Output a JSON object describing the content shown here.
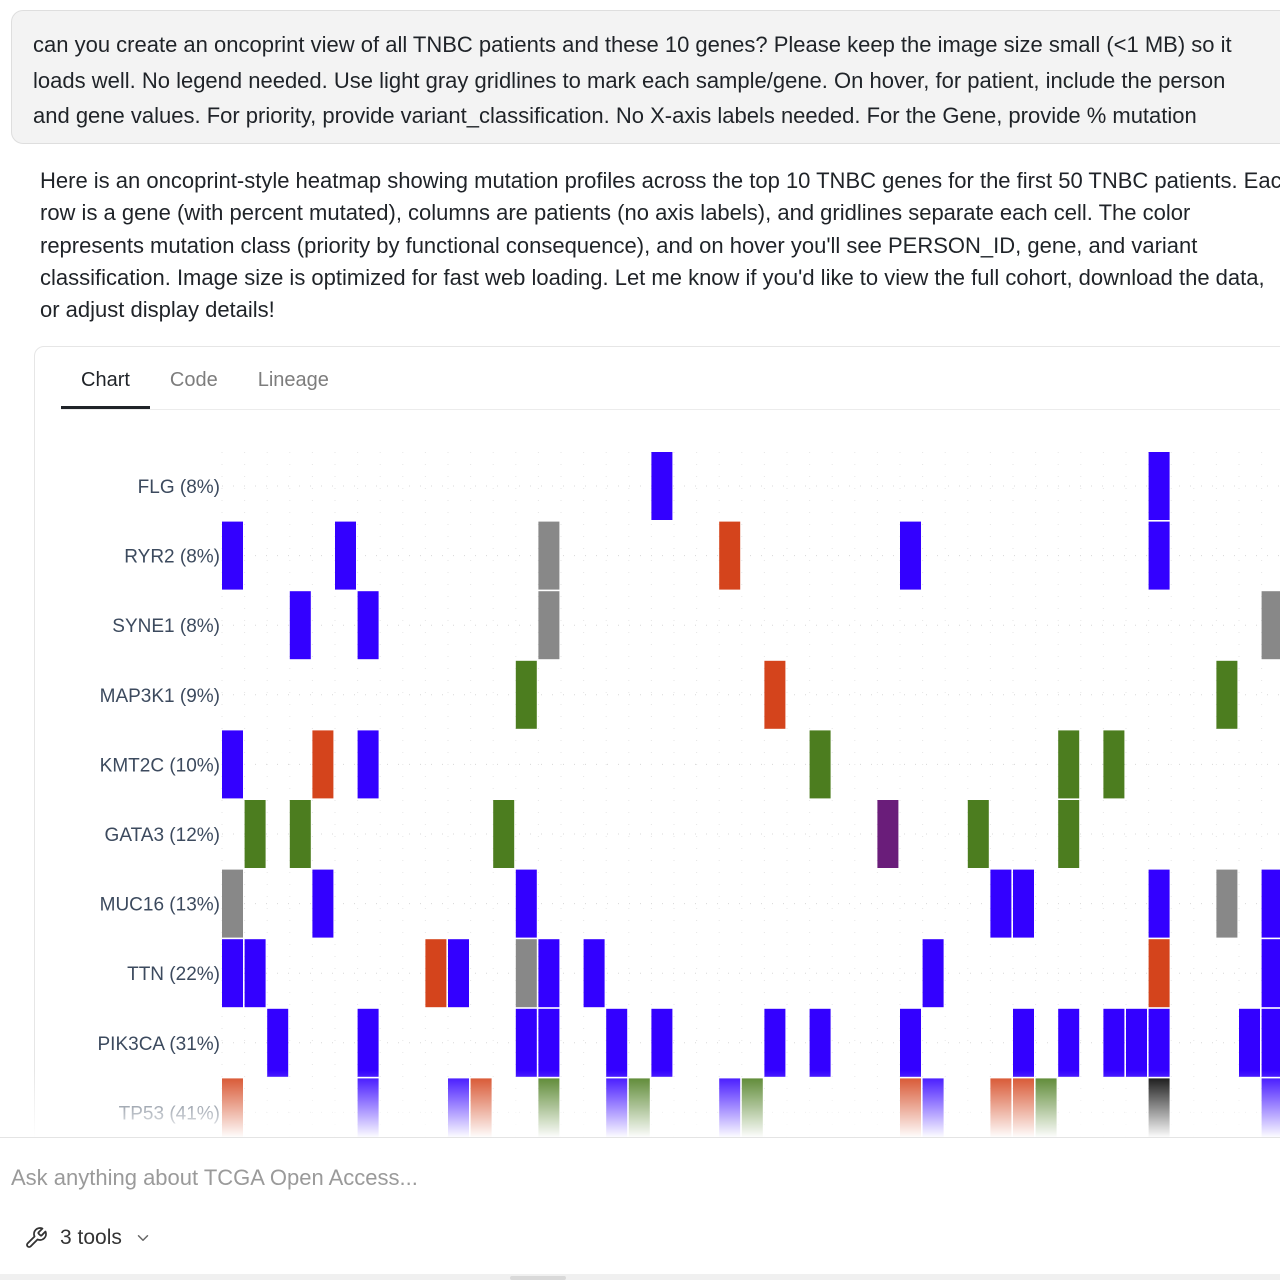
{
  "user_message": {
    "lines": [
      "can you create an oncoprint view of all TNBC patients and these 10 genes? Please keep the image size small (<1 MB) so it",
      "loads well. No legend needed. Use light gray gridlines to mark each sample/gene. On hover, for patient, include the person",
      "and gene values. For priority, provide variant_classification. No X-axis labels needed. For the Gene, provide % mutation"
    ]
  },
  "assistant_message": {
    "lines": [
      "Here is an oncoprint-style heatmap showing mutation profiles across the top 10 TNBC genes for the first 50 TNBC patients. Each",
      "row is a gene (with percent mutated), columns are patients (no axis labels), and gridlines separate each cell. The color",
      "represents mutation class (priority by functional consequence), and on hover you'll see PERSON_ID, gene, and variant",
      "classification. Image size is optimized for fast web loading. Let me know if you'd like to view the full cohort, download the data,",
      "or adjust display details!"
    ]
  },
  "tabs": [
    {
      "label": "Chart",
      "active": true
    },
    {
      "label": "Code",
      "active": false
    },
    {
      "label": "Lineage",
      "active": false
    }
  ],
  "chart_data": {
    "type": "heatmap",
    "genes": [
      "FLG (8%)",
      "RYR2 (8%)",
      "SYNE1 (8%)",
      "MAP3K1 (9%)",
      "KMT2C (10%)",
      "GATA3 (12%)",
      "MUC16 (13%)",
      "TTN (22%)",
      "PIK3CA (31%)",
      "TP53 (41%)"
    ],
    "colors": {
      "B": "#3300ff",
      "R": "#d4441c",
      "G": "#888888",
      "N": "#4c7d1f",
      "P": "#6a1d7a",
      "K": "#000000"
    },
    "visible_columns": 48,
    "cells": [
      [
        [
          19,
          "B"
        ],
        [
          41,
          "B"
        ]
      ],
      [
        [
          0,
          "B"
        ],
        [
          5,
          "B"
        ],
        [
          14,
          "G"
        ],
        [
          22,
          "R"
        ],
        [
          30,
          "B"
        ],
        [
          41,
          "B"
        ]
      ],
      [
        [
          3,
          "B"
        ],
        [
          6,
          "B"
        ],
        [
          14,
          "G"
        ],
        [
          46,
          "G"
        ]
      ],
      [
        [
          13,
          "N"
        ],
        [
          24,
          "R"
        ],
        [
          44,
          "N"
        ]
      ],
      [
        [
          0,
          "B"
        ],
        [
          4,
          "R"
        ],
        [
          6,
          "B"
        ],
        [
          26,
          "N"
        ],
        [
          37,
          "N"
        ],
        [
          39,
          "N"
        ]
      ],
      [
        [
          1,
          "N"
        ],
        [
          3,
          "N"
        ],
        [
          12,
          "N"
        ],
        [
          29,
          "P"
        ],
        [
          33,
          "N"
        ],
        [
          37,
          "N"
        ]
      ],
      [
        [
          0,
          "G"
        ],
        [
          4,
          "B"
        ],
        [
          13,
          "B"
        ],
        [
          34,
          "B"
        ],
        [
          35,
          "B"
        ],
        [
          41,
          "B"
        ],
        [
          44,
          "G"
        ],
        [
          46,
          "B"
        ]
      ],
      [
        [
          0,
          "B"
        ],
        [
          1,
          "B"
        ],
        [
          9,
          "R"
        ],
        [
          10,
          "B"
        ],
        [
          13,
          "G"
        ],
        [
          14,
          "B"
        ],
        [
          16,
          "B"
        ],
        [
          31,
          "B"
        ],
        [
          41,
          "R"
        ],
        [
          46,
          "B"
        ]
      ],
      [
        [
          2,
          "B"
        ],
        [
          6,
          "B"
        ],
        [
          13,
          "B"
        ],
        [
          14,
          "B"
        ],
        [
          17,
          "B"
        ],
        [
          19,
          "B"
        ],
        [
          24,
          "B"
        ],
        [
          26,
          "B"
        ],
        [
          30,
          "B"
        ],
        [
          35,
          "B"
        ],
        [
          37,
          "B"
        ],
        [
          39,
          "B"
        ],
        [
          40,
          "B"
        ],
        [
          41,
          "B"
        ],
        [
          45,
          "B"
        ],
        [
          46,
          "B"
        ]
      ],
      [
        [
          0,
          "R"
        ],
        [
          6,
          "B"
        ],
        [
          10,
          "B"
        ],
        [
          11,
          "R"
        ],
        [
          14,
          "N"
        ],
        [
          17,
          "B"
        ],
        [
          18,
          "N"
        ],
        [
          22,
          "B"
        ],
        [
          23,
          "N"
        ],
        [
          30,
          "R"
        ],
        [
          31,
          "B"
        ],
        [
          34,
          "R"
        ],
        [
          35,
          "R"
        ],
        [
          36,
          "N"
        ],
        [
          41,
          "K"
        ],
        [
          46,
          "B"
        ]
      ]
    ]
  },
  "composer": {
    "placeholder": "Ask anything about TCGA Open Access...",
    "tools_label": "3 tools"
  }
}
